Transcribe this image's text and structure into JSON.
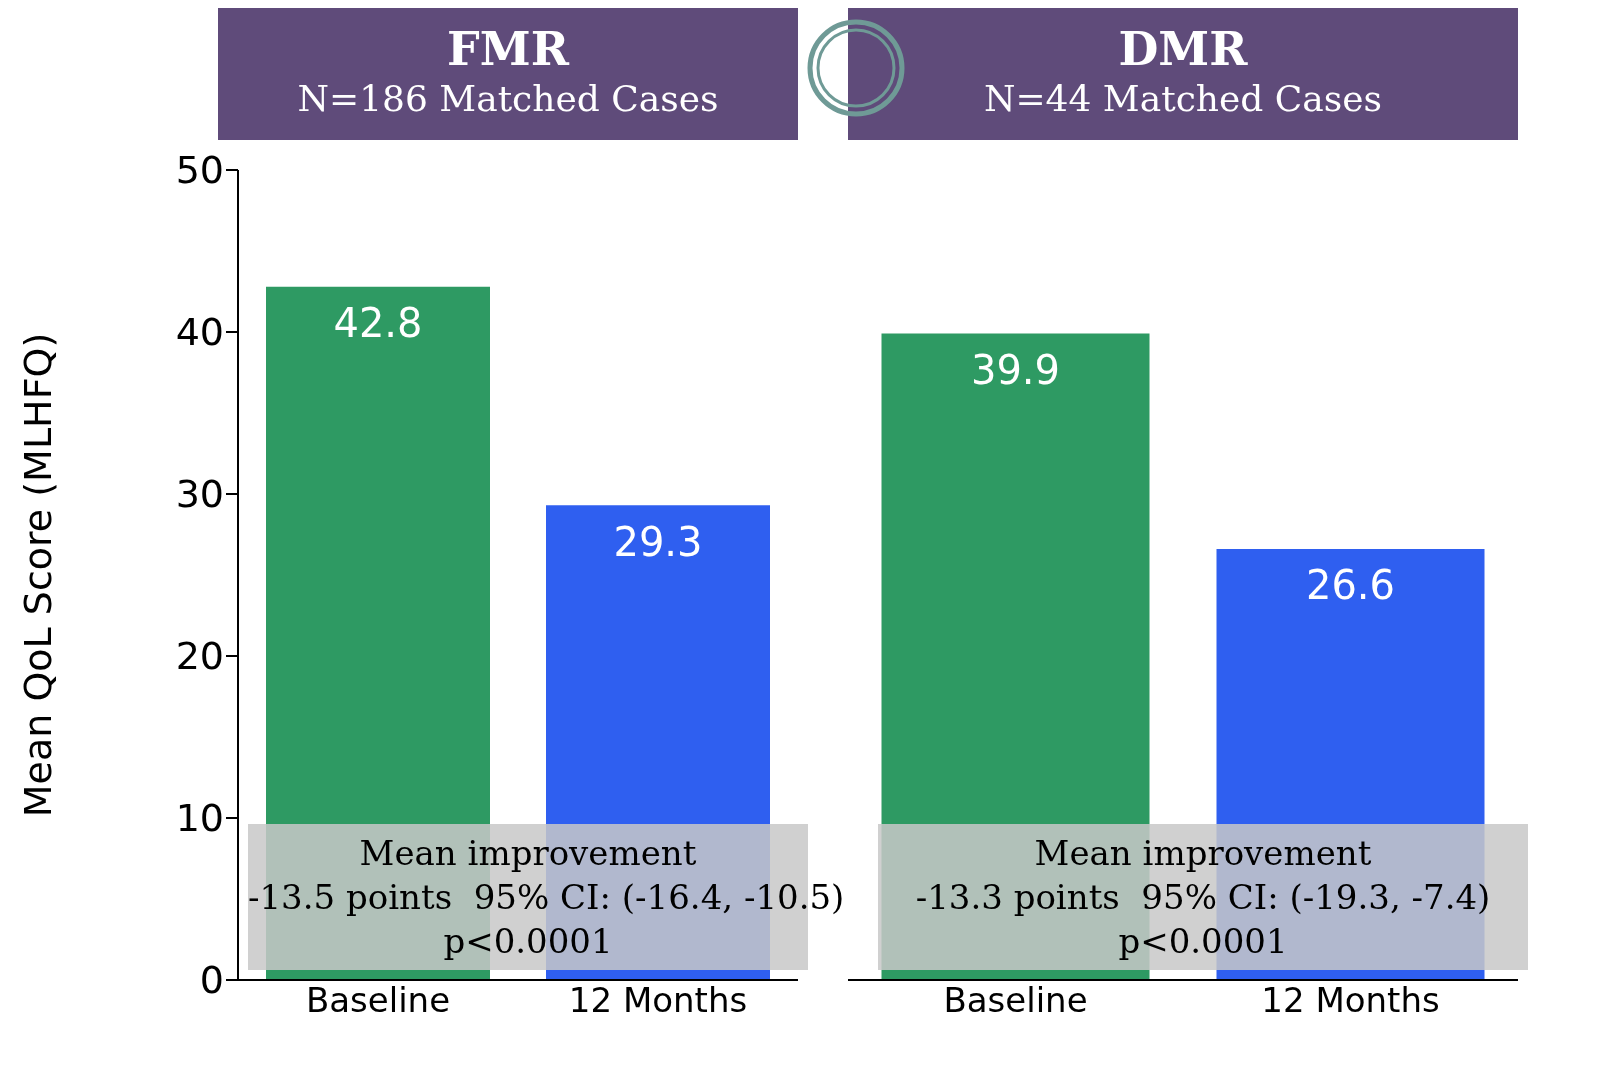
{
  "chart_data": [
    {
      "type": "bar",
      "title": "FMR",
      "subtitle": "N=186 Matched Cases",
      "ylabel": "Mean QoL Score (MLHFQ)",
      "categories": [
        "Baseline",
        "12 Months"
      ],
      "values": [
        42.8,
        29.3
      ],
      "colors": [
        "#2e9a63",
        "#2f5ff0"
      ],
      "ylim": [
        0,
        50
      ],
      "yticks": [
        0,
        10,
        20,
        30,
        40,
        50
      ],
      "data_labels": true,
      "grid": false,
      "legend": false,
      "annotations": [
        "Mean improvement",
        "-13.5 points  95% CI: (-16.4, -10.5)",
        "p<0.0001"
      ]
    },
    {
      "type": "bar",
      "title": "DMR",
      "subtitle": "N=44 Matched Cases",
      "categories": [
        "Baseline",
        "12 Months"
      ],
      "values": [
        39.9,
        26.6
      ],
      "colors": [
        "#2e9a63",
        "#2f5ff0"
      ],
      "ylim": [
        0,
        50
      ],
      "yticks": [
        0,
        10,
        20,
        30,
        40,
        50
      ],
      "tick_labels": "x",
      "data_labels": true,
      "grid": false,
      "legend": false,
      "annotations": [
        "Mean improvement",
        "-13.3 points  95% CI: (-19.3, -7.4)",
        "p<0.0001"
      ]
    }
  ]
}
